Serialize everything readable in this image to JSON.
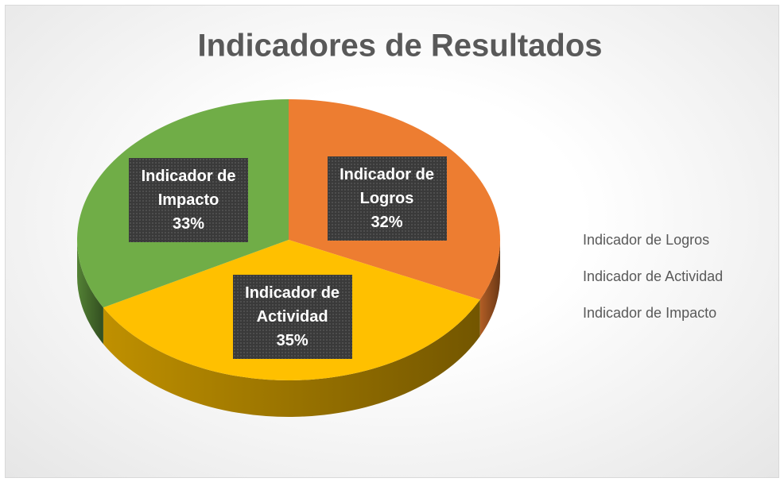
{
  "chart_data": {
    "type": "pie",
    "title": "Indicadores de Resultados",
    "categories": [
      "Indicador de Logros",
      "Indicador de Actividad",
      "Indicador de Impacto"
    ],
    "values": [
      32,
      35,
      33
    ],
    "value_labels": [
      "32%",
      "35%",
      "33%"
    ],
    "colors": [
      "#ED7D31",
      "#FFC000",
      "#70AD47"
    ],
    "legend": "right"
  }
}
